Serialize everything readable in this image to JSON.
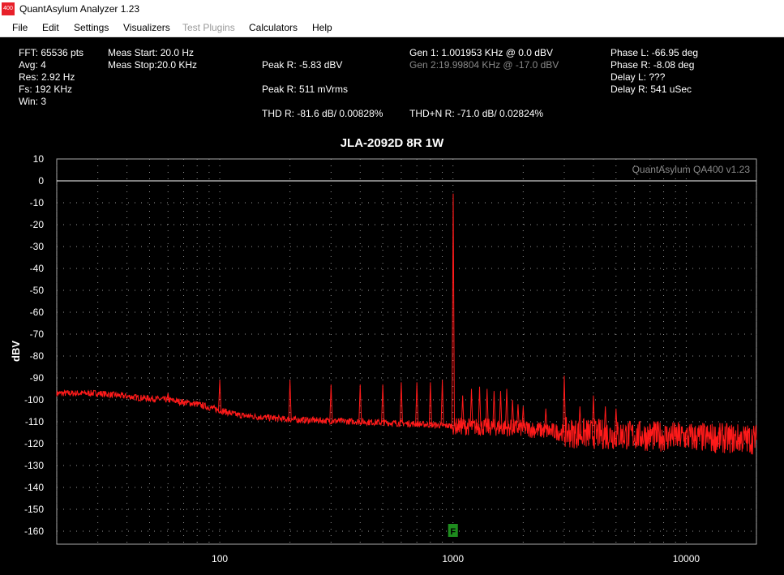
{
  "window": {
    "icon_text": "400",
    "title": "QuantAsylum Analyzer 1.23"
  },
  "menu": [
    {
      "label": "File",
      "enabled": true
    },
    {
      "label": "Edit",
      "enabled": true
    },
    {
      "label": "Settings",
      "enabled": true
    },
    {
      "label": "Visualizers",
      "enabled": true
    },
    {
      "label": "Test Plugins",
      "enabled": false
    },
    {
      "label": "Calculators",
      "enabled": true
    },
    {
      "label": "Help",
      "enabled": true
    }
  ],
  "stats": {
    "fft": "FFT: 65536 pts",
    "avg": "Avg: 4",
    "res": "Res: 2.92 Hz",
    "fs": "Fs: 192 KHz",
    "win": "Win: 3",
    "meas_start": "Meas Start: 20.0 Hz",
    "meas_stop": "Meas Stop:20.0 KHz",
    "peak_r_dbv": "Peak R: -5.83 dBV",
    "peak_r_mvrms": "Peak R: 511 mVrms",
    "thd_r": "THD R: -81.6 dB/ 0.00828%",
    "gen1": "Gen 1: 1.001953 KHz @ 0.0  dBV",
    "gen2": "Gen 2:19.99804 KHz @ -17.0  dBV",
    "thdn_r": "THD+N R: -71.0 dB/ 0.02824%",
    "phase_l": "Phase L: -66.95 deg",
    "phase_r": "Phase R: -8.08 deg",
    "delay_l": "Delay L: ???",
    "delay_r": "Delay R: 541 uSec"
  },
  "chart_data": {
    "type": "line",
    "title": "JLA-2092D 8R 1W",
    "watermark": "QuantAsylum QA400 v1.23",
    "ylabel": "dBV",
    "xlabel": "",
    "x_scale": "log",
    "xlim": [
      20,
      20000
    ],
    "ylim": [
      -165,
      10
    ],
    "y_ticks": [
      10,
      0,
      -10,
      -20,
      -30,
      -40,
      -50,
      -60,
      -70,
      -80,
      -90,
      -100,
      -110,
      -120,
      -130,
      -140,
      -150,
      -160
    ],
    "x_tick_labels": [
      100,
      1000,
      10000
    ],
    "grid": true,
    "reference_line_y": 0,
    "series_color": "#ff1a1a",
    "marker": {
      "label": "F",
      "x": 1000,
      "y": -160,
      "color": "#1e8c1e"
    },
    "series": [
      {
        "name": "",
        "noise_floor": [
          [
            20,
            -97
          ],
          [
            30,
            -97
          ],
          [
            45,
            -99
          ],
          [
            60,
            -100
          ],
          [
            80,
            -102
          ],
          [
            120,
            -107
          ],
          [
            200,
            -109
          ],
          [
            400,
            -110
          ],
          [
            700,
            -111
          ],
          [
            1000,
            -112
          ],
          [
            2000,
            -113
          ],
          [
            3000,
            -115
          ],
          [
            5000,
            -116
          ],
          [
            10000,
            -117
          ],
          [
            20000,
            -118
          ]
        ],
        "peaks": [
          [
            60,
            -97
          ],
          [
            100,
            -91
          ],
          [
            200,
            -91
          ],
          [
            300,
            -93
          ],
          [
            400,
            -93
          ],
          [
            500,
            -93
          ],
          [
            600,
            -92
          ],
          [
            700,
            -92
          ],
          [
            800,
            -92
          ],
          [
            900,
            -91
          ],
          [
            1001.95,
            -5.83
          ],
          [
            1100,
            -98
          ],
          [
            1200,
            -95
          ],
          [
            1300,
            -94
          ],
          [
            1400,
            -95
          ],
          [
            1500,
            -96
          ],
          [
            1600,
            -96
          ],
          [
            1700,
            -95
          ],
          [
            1800,
            -100
          ],
          [
            1900,
            -102
          ],
          [
            2000,
            -103
          ],
          [
            2500,
            -104
          ],
          [
            3000,
            -89
          ],
          [
            3500,
            -103
          ],
          [
            4000,
            -98
          ],
          [
            4500,
            -103
          ],
          [
            5000,
            -104
          ]
        ]
      }
    ]
  }
}
